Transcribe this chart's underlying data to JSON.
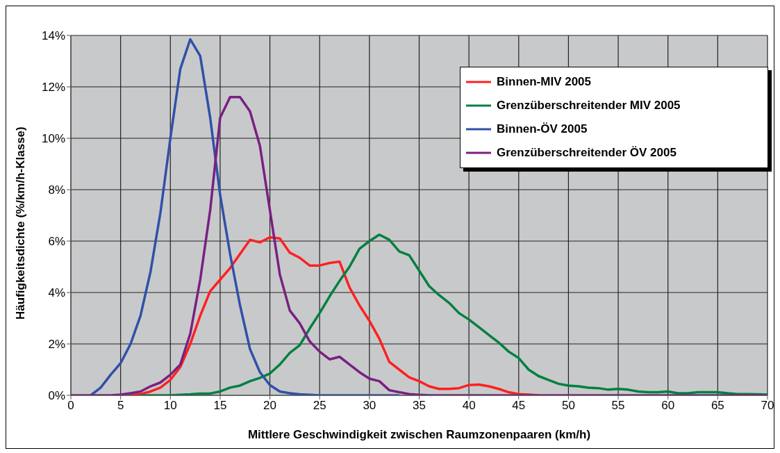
{
  "chart_data": {
    "type": "line",
    "xlabel": "Mittlere Geschwindigkeit zwischen Raumzonenpaaren (km/h)",
    "ylabel": "Häufigkeitsdichte (%/km/h-Klasse)",
    "x": [
      0,
      1,
      2,
      3,
      4,
      5,
      6,
      7,
      8,
      9,
      10,
      11,
      12,
      13,
      14,
      15,
      16,
      17,
      18,
      19,
      20,
      21,
      22,
      23,
      24,
      25,
      26,
      27,
      28,
      29,
      30,
      31,
      32,
      33,
      34,
      35,
      36,
      37,
      38,
      39,
      40,
      41,
      42,
      43,
      44,
      45,
      46,
      47,
      48,
      49,
      50,
      51,
      52,
      53,
      54,
      55,
      56,
      57,
      58,
      59,
      60,
      61,
      62,
      63,
      64,
      65,
      66,
      67,
      68,
      69,
      70
    ],
    "series": [
      {
        "name": "Binnen-MIV 2005",
        "color": "#ff2020",
        "values": [
          null,
          null,
          null,
          null,
          null,
          null,
          0,
          0.05,
          0.15,
          0.3,
          0.6,
          1.1,
          2.0,
          3.1,
          4.05,
          4.5,
          4.95,
          5.5,
          6.05,
          5.95,
          6.15,
          6.1,
          5.55,
          5.35,
          5.05,
          5.05,
          5.15,
          5.2,
          4.2,
          3.5,
          2.9,
          2.2,
          1.3,
          1.0,
          0.7,
          0.55,
          0.35,
          0.25,
          0.25,
          0.28,
          0.4,
          0.42,
          0.35,
          0.25,
          0.12,
          0.05,
          0.03,
          0,
          null,
          null,
          null,
          null,
          null,
          null,
          null,
          null,
          null,
          null,
          null,
          null,
          null,
          null,
          null,
          null,
          null,
          null,
          null,
          null,
          null,
          null,
          null
        ]
      },
      {
        "name": "Grenzüberschreitender MIV 2005",
        "color": "#008040",
        "values": [
          null,
          null,
          null,
          null,
          null,
          null,
          null,
          0,
          0,
          0,
          0,
          0.02,
          0.04,
          0.07,
          0.07,
          0.15,
          0.3,
          0.38,
          0.55,
          0.68,
          0.85,
          1.2,
          1.65,
          1.95,
          2.6,
          3.2,
          3.85,
          4.45,
          5.0,
          5.7,
          6.0,
          6.25,
          6.05,
          5.6,
          5.45,
          4.85,
          4.25,
          3.9,
          3.6,
          3.2,
          2.95,
          2.65,
          2.35,
          2.05,
          1.7,
          1.45,
          1.0,
          0.75,
          0.6,
          0.45,
          0.38,
          0.35,
          0.3,
          0.28,
          0.22,
          0.25,
          0.22,
          0.15,
          0.12,
          0.12,
          0.15,
          0.08,
          0.08,
          0.12,
          0.12,
          0.12,
          0.08,
          0.05,
          0.05,
          0.04,
          0.03
        ]
      },
      {
        "name": "Binnen-ÖV 2005",
        "color": "#3050a8",
        "values": [
          null,
          null,
          0,
          0.3,
          0.8,
          1.25,
          2.0,
          3.1,
          4.8,
          7.1,
          10.0,
          12.7,
          13.85,
          13.2,
          10.8,
          7.8,
          5.5,
          3.5,
          1.8,
          0.9,
          0.4,
          0.15,
          0.08,
          0.04,
          0.02,
          0,
          0,
          0,
          0,
          0,
          0,
          0,
          0,
          0,
          null,
          null,
          null,
          null,
          null,
          null,
          null,
          null,
          null,
          null,
          null,
          null,
          null,
          null,
          null,
          null,
          null,
          null,
          null,
          null,
          null,
          null,
          null,
          null,
          null,
          null,
          null,
          null,
          null,
          null,
          null,
          null,
          null,
          null,
          null,
          null,
          null
        ]
      },
      {
        "name": "Grenzüberschreitender ÖV 2005",
        "color": "#7a2080",
        "values": [
          0,
          0,
          0,
          0,
          0,
          0.03,
          0.08,
          0.15,
          0.35,
          0.5,
          0.8,
          1.2,
          2.4,
          4.5,
          7.2,
          10.8,
          11.6,
          11.6,
          11.05,
          9.7,
          7.2,
          4.7,
          3.3,
          2.8,
          2.1,
          1.7,
          1.4,
          1.5,
          1.2,
          0.9,
          0.65,
          0.55,
          0.2,
          0.12,
          0.05,
          0.02,
          0,
          0,
          0,
          0,
          0,
          0,
          0,
          0,
          0,
          0,
          0,
          0,
          0,
          0,
          0,
          0,
          0,
          0,
          0,
          0,
          0,
          0,
          0,
          0,
          0,
          0,
          0,
          0,
          0,
          0,
          0,
          0,
          0,
          0,
          0
        ]
      }
    ],
    "xlim": [
      0,
      70
    ],
    "xticks": [
      0,
      5,
      10,
      15,
      20,
      25,
      30,
      35,
      40,
      45,
      50,
      55,
      60,
      65,
      70
    ],
    "ylim": [
      0,
      14
    ],
    "yticks": [
      {
        "value": 0,
        "label": "0%"
      },
      {
        "value": 2,
        "label": "2%"
      },
      {
        "value": 4,
        "label": "4%"
      },
      {
        "value": 6,
        "label": "6%"
      },
      {
        "value": 8,
        "label": "8%"
      },
      {
        "value": 10,
        "label": "10%"
      },
      {
        "value": 12,
        "label": "12%"
      },
      {
        "value": 14,
        "label": "14%"
      }
    ],
    "grid": true,
    "legend": "top right",
    "marker": "none",
    "line_style": "solid"
  }
}
